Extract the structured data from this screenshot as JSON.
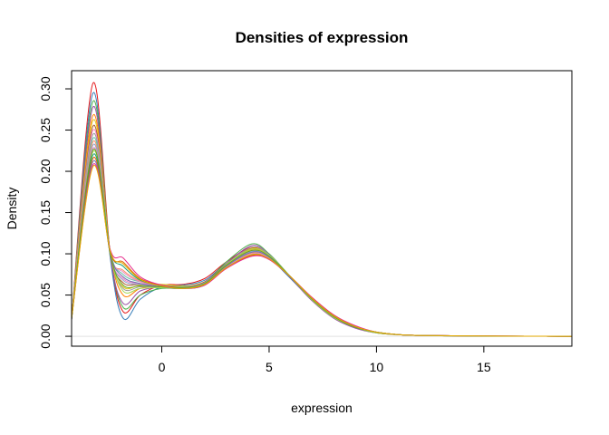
{
  "chart_data": {
    "type": "line",
    "title": "Densities of expression",
    "xlabel": "expression",
    "ylabel": "Density",
    "xlim": [
      -4.2,
      19.1
    ],
    "ylim": [
      -0.012,
      0.322
    ],
    "xticks": [
      0,
      5,
      10,
      15
    ],
    "yticks": [
      0.0,
      0.05,
      0.1,
      0.15,
      0.2,
      0.25,
      0.3
    ],
    "xtick_labels": [
      "0",
      "5",
      "10",
      "15"
    ],
    "ytick_labels": [
      "0.00",
      "0.05",
      "0.10",
      "0.15",
      "0.20",
      "0.25",
      "0.30"
    ],
    "grid": false,
    "legend": "none",
    "colors": [
      "#E41A1C",
      "#377EB8",
      "#4DAF4A",
      "#984EA3",
      "#FF7F00",
      "#E6C619",
      "#A65628",
      "#F781BF",
      "#999999",
      "#66C2A5",
      "#FC8D62",
      "#8DA0CB",
      "#E78AC3",
      "#A6D854",
      "#1B9E77",
      "#D95F02",
      "#7570B3",
      "#E7298A",
      "#66A61E",
      "#E6AB02"
    ],
    "series": [
      {
        "x": [
          -4.2,
          -3.2,
          -2.4,
          -1.8,
          -1,
          0,
          1,
          2,
          3,
          4.2,
          5,
          6,
          7,
          8,
          9,
          10,
          11,
          12,
          13,
          15,
          17,
          19.1
        ],
        "values": [
          0.02,
          0.307,
          0.1,
          0.03,
          0.05,
          0.062,
          0.063,
          0.07,
          0.09,
          0.108,
          0.097,
          0.072,
          0.045,
          0.025,
          0.012,
          0.005,
          0.002,
          0.001,
          0.0008,
          0.0003,
          0.0001,
          0
        ]
      },
      {
        "x": [
          -4.2,
          -3.2,
          -2.4,
          -1.8,
          -1,
          0,
          1,
          2,
          3,
          4.2,
          5,
          6,
          7,
          8,
          9,
          10,
          11,
          12,
          13,
          15,
          17,
          19.1
        ],
        "values": [
          0.02,
          0.295,
          0.095,
          0.022,
          0.045,
          0.06,
          0.062,
          0.068,
          0.088,
          0.104,
          0.095,
          0.07,
          0.044,
          0.024,
          0.011,
          0.005,
          0.002,
          0.001,
          0.0008,
          0.0003,
          0.0001,
          0
        ]
      },
      {
        "x": [
          -4.2,
          -3.2,
          -2.4,
          -1.8,
          -1,
          0,
          1,
          2,
          3,
          4.2,
          5,
          6,
          7,
          8,
          9,
          10,
          11,
          12,
          13,
          15,
          17,
          19.1
        ],
        "values": [
          0.021,
          0.285,
          0.1,
          0.035,
          0.05,
          0.058,
          0.058,
          0.065,
          0.09,
          0.112,
          0.1,
          0.072,
          0.044,
          0.023,
          0.011,
          0.004,
          0.002,
          0.001,
          0.0006,
          0.0002,
          0.0001,
          0
        ]
      },
      {
        "x": [
          -4.2,
          -3.2,
          -2.4,
          -1.8,
          -1,
          0,
          1,
          2,
          3,
          4.2,
          5,
          6,
          7,
          8,
          9,
          10,
          11,
          12,
          13,
          15,
          17,
          19.1
        ],
        "values": [
          0.02,
          0.278,
          0.098,
          0.04,
          0.055,
          0.06,
          0.06,
          0.066,
          0.088,
          0.11,
          0.099,
          0.071,
          0.043,
          0.022,
          0.01,
          0.004,
          0.002,
          0.001,
          0.0006,
          0.0002,
          0.0001,
          0
        ]
      },
      {
        "x": [
          -4.2,
          -3.2,
          -2.4,
          -1.8,
          -1,
          0,
          1,
          2,
          3,
          4.2,
          5,
          6,
          7,
          8,
          9,
          10,
          11,
          12,
          13,
          15,
          17,
          19.1
        ],
        "values": [
          0.022,
          0.268,
          0.102,
          0.05,
          0.058,
          0.062,
          0.06,
          0.065,
          0.087,
          0.107,
          0.098,
          0.072,
          0.045,
          0.024,
          0.011,
          0.005,
          0.002,
          0.001,
          0.0007,
          0.0002,
          0.0001,
          0
        ]
      },
      {
        "x": [
          -4.2,
          -3.2,
          -2.4,
          -1.8,
          -1,
          0,
          1,
          2,
          3,
          4.2,
          5,
          6,
          7,
          8,
          9,
          10,
          11,
          12,
          13,
          15,
          17,
          19.1
        ],
        "values": [
          0.022,
          0.262,
          0.1,
          0.06,
          0.062,
          0.063,
          0.061,
          0.066,
          0.086,
          0.105,
          0.097,
          0.072,
          0.045,
          0.024,
          0.011,
          0.005,
          0.002,
          0.001,
          0.0007,
          0.0002,
          0.0001,
          0
        ]
      },
      {
        "x": [
          -4.2,
          -3.2,
          -2.4,
          -1.8,
          -1,
          0,
          1,
          2,
          3,
          4.2,
          5,
          6,
          7,
          8,
          9,
          10,
          11,
          12,
          13,
          15,
          17,
          19.1
        ],
        "values": [
          0.021,
          0.255,
          0.1,
          0.065,
          0.063,
          0.061,
          0.06,
          0.066,
          0.087,
          0.106,
          0.098,
          0.072,
          0.045,
          0.024,
          0.011,
          0.005,
          0.002,
          0.001,
          0.0007,
          0.0002,
          0.0001,
          0
        ]
      },
      {
        "x": [
          -4.2,
          -3.2,
          -2.4,
          -1.8,
          -1,
          0,
          1,
          2,
          3,
          4.2,
          5,
          6,
          7,
          8,
          9,
          10,
          11,
          12,
          13,
          15,
          17,
          19.1
        ],
        "values": [
          0.022,
          0.25,
          0.101,
          0.07,
          0.064,
          0.062,
          0.06,
          0.065,
          0.086,
          0.104,
          0.097,
          0.072,
          0.046,
          0.025,
          0.012,
          0.005,
          0.002,
          0.001,
          0.0008,
          0.0003,
          0.0001,
          0
        ]
      },
      {
        "x": [
          -4.2,
          -3.2,
          -2.4,
          -1.8,
          -1,
          0,
          1,
          2,
          3,
          4.2,
          5,
          6,
          7,
          8,
          9,
          10,
          11,
          12,
          13,
          15,
          17,
          19.1
        ],
        "values": [
          0.021,
          0.245,
          0.1,
          0.058,
          0.06,
          0.06,
          0.059,
          0.065,
          0.087,
          0.108,
          0.099,
          0.072,
          0.044,
          0.023,
          0.011,
          0.004,
          0.002,
          0.001,
          0.0006,
          0.0002,
          0.0001,
          0
        ]
      },
      {
        "x": [
          -4.2,
          -3.2,
          -2.4,
          -1.8,
          -1,
          0,
          1,
          2,
          3,
          4.2,
          5,
          6,
          7,
          8,
          9,
          10,
          11,
          12,
          13,
          15,
          17,
          19.1
        ],
        "values": [
          0.022,
          0.24,
          0.103,
          0.075,
          0.066,
          0.062,
          0.06,
          0.064,
          0.085,
          0.102,
          0.096,
          0.072,
          0.046,
          0.025,
          0.012,
          0.005,
          0.002,
          0.001,
          0.0008,
          0.0003,
          0.0001,
          0
        ]
      },
      {
        "x": [
          -4.2,
          -3.2,
          -2.4,
          -1.8,
          -1,
          0,
          1,
          2,
          3,
          4.2,
          5,
          6,
          7,
          8,
          9,
          10,
          11,
          12,
          13,
          15,
          17,
          19.1
        ],
        "values": [
          0.022,
          0.236,
          0.1,
          0.08,
          0.067,
          0.061,
          0.059,
          0.064,
          0.085,
          0.101,
          0.095,
          0.072,
          0.046,
          0.025,
          0.012,
          0.005,
          0.002,
          0.001,
          0.0008,
          0.0003,
          0.0001,
          0
        ]
      },
      {
        "x": [
          -4.2,
          -3.2,
          -2.4,
          -1.8,
          -1,
          0,
          1,
          2,
          3,
          4.2,
          5,
          6,
          7,
          8,
          9,
          10,
          11,
          12,
          13,
          15,
          17,
          19.1
        ],
        "values": [
          0.021,
          0.232,
          0.099,
          0.068,
          0.063,
          0.06,
          0.059,
          0.065,
          0.086,
          0.103,
          0.096,
          0.072,
          0.045,
          0.024,
          0.011,
          0.005,
          0.002,
          0.001,
          0.0007,
          0.0002,
          0.0001,
          0
        ]
      },
      {
        "x": [
          -4.2,
          -3.2,
          -2.4,
          -1.8,
          -1,
          0,
          1,
          2,
          3,
          4.2,
          5,
          6,
          7,
          8,
          9,
          10,
          11,
          12,
          13,
          15,
          17,
          19.1
        ],
        "values": [
          0.022,
          0.228,
          0.1,
          0.078,
          0.066,
          0.06,
          0.058,
          0.063,
          0.084,
          0.1,
          0.095,
          0.072,
          0.046,
          0.025,
          0.012,
          0.005,
          0.002,
          0.001,
          0.0008,
          0.0003,
          0.0001,
          0
        ]
      },
      {
        "x": [
          -4.2,
          -3.2,
          -2.4,
          -1.8,
          -1,
          0,
          1,
          2,
          3,
          4.2,
          5,
          6,
          7,
          8,
          9,
          10,
          11,
          12,
          13,
          15,
          17,
          19.1
        ],
        "values": [
          0.021,
          0.224,
          0.1,
          0.055,
          0.058,
          0.059,
          0.058,
          0.064,
          0.087,
          0.106,
          0.098,
          0.072,
          0.044,
          0.023,
          0.011,
          0.004,
          0.002,
          0.001,
          0.0006,
          0.0002,
          0.0001,
          0
        ]
      },
      {
        "x": [
          -4.2,
          -3.2,
          -2.4,
          -1.8,
          -1,
          0,
          1,
          2,
          3,
          4.2,
          5,
          6,
          7,
          8,
          9,
          10,
          11,
          12,
          13,
          15,
          17,
          19.1
        ],
        "values": [
          0.022,
          0.22,
          0.104,
          0.085,
          0.068,
          0.061,
          0.058,
          0.062,
          0.083,
          0.099,
          0.094,
          0.072,
          0.046,
          0.026,
          0.012,
          0.005,
          0.002,
          0.001,
          0.0008,
          0.0003,
          0.0001,
          0
        ]
      },
      {
        "x": [
          -4.2,
          -3.2,
          -2.4,
          -1.8,
          -1,
          0,
          1,
          2,
          3,
          4.2,
          5,
          6,
          7,
          8,
          9,
          10,
          11,
          12,
          13,
          15,
          17,
          19.1
        ],
        "values": [
          0.022,
          0.216,
          0.102,
          0.09,
          0.07,
          0.062,
          0.059,
          0.063,
          0.083,
          0.098,
          0.094,
          0.072,
          0.047,
          0.026,
          0.012,
          0.005,
          0.002,
          0.001,
          0.0008,
          0.0003,
          0.0001,
          0
        ]
      },
      {
        "x": [
          -4.2,
          -3.2,
          -2.4,
          -1.8,
          -1,
          0,
          1,
          2,
          3,
          4.2,
          5,
          6,
          7,
          8,
          9,
          10,
          11,
          12,
          13,
          15,
          17,
          19.1
        ],
        "values": [
          0.021,
          0.212,
          0.1,
          0.072,
          0.064,
          0.06,
          0.058,
          0.064,
          0.085,
          0.102,
          0.096,
          0.072,
          0.045,
          0.024,
          0.011,
          0.005,
          0.002,
          0.001,
          0.0007,
          0.0002,
          0.0001,
          0
        ]
      },
      {
        "x": [
          -4.2,
          -3.2,
          -2.4,
          -1.8,
          -1,
          0,
          1,
          2,
          3,
          4.2,
          5,
          6,
          7,
          8,
          9,
          10,
          11,
          12,
          13,
          15,
          17,
          19.1
        ],
        "values": [
          0.022,
          0.208,
          0.105,
          0.095,
          0.072,
          0.062,
          0.058,
          0.062,
          0.082,
          0.097,
          0.093,
          0.072,
          0.047,
          0.026,
          0.013,
          0.005,
          0.002,
          0.001,
          0.0008,
          0.0003,
          0.0001,
          0
        ]
      },
      {
        "x": [
          -4.2,
          -3.2,
          -2.4,
          -1.8,
          -1,
          0,
          1,
          2,
          3,
          4.2,
          5,
          6,
          7,
          8,
          9,
          10,
          11,
          12,
          13,
          15,
          17,
          19.1
        ],
        "values": [
          0.021,
          0.226,
          0.1,
          0.062,
          0.061,
          0.06,
          0.059,
          0.064,
          0.086,
          0.104,
          0.097,
          0.072,
          0.045,
          0.024,
          0.011,
          0.005,
          0.002,
          0.001,
          0.0007,
          0.0002,
          0.0001,
          0
        ]
      },
      {
        "x": [
          -4.2,
          -3.2,
          -2.4,
          -1.8,
          -1,
          0,
          1,
          2,
          3,
          4.2,
          5,
          6,
          7,
          8,
          9,
          10,
          11,
          12,
          13,
          15,
          17,
          19.1
        ],
        "values": [
          0.022,
          0.206,
          0.103,
          0.088,
          0.069,
          0.061,
          0.058,
          0.063,
          0.083,
          0.099,
          0.094,
          0.072,
          0.046,
          0.025,
          0.012,
          0.005,
          0.002,
          0.001,
          0.0008,
          0.0003,
          0.0001,
          0
        ]
      }
    ]
  }
}
